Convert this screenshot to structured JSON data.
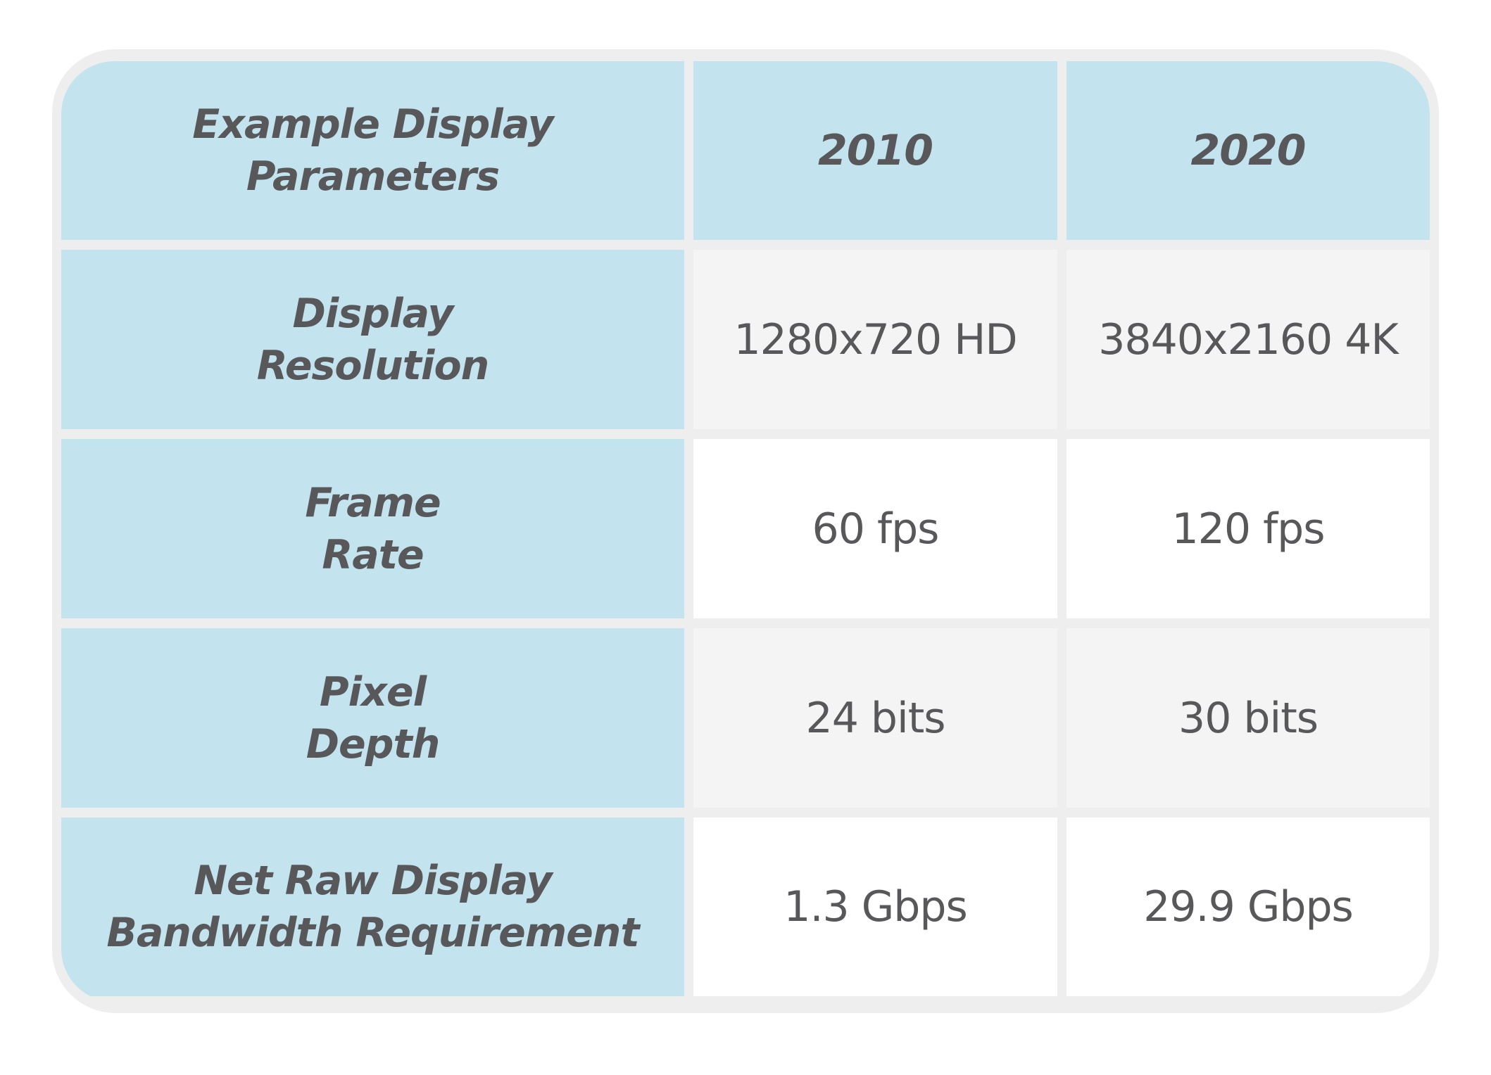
{
  "table": {
    "header": {
      "parameter": "Example Display\nParameters",
      "col_2010": "2010",
      "col_2020": "2020"
    },
    "rows": [
      {
        "label": "Display\nResolution",
        "v2010": "1280x720 HD",
        "v2020": "3840x2160 4K"
      },
      {
        "label": "Frame\nRate",
        "v2010": "60 fps",
        "v2020": "120 fps"
      },
      {
        "label": "Pixel\nDepth",
        "v2010": "24 bits",
        "v2020": "30 bits"
      },
      {
        "label": "Net Raw Display\nBandwidth Requirement",
        "v2010": "1.3 Gbps",
        "v2020": "29.9 Gbps"
      }
    ]
  },
  "colors": {
    "header_fill": "#c3e4ef",
    "alt_row_fill": "#f4f4f4",
    "row_fill": "#ffffff",
    "border": "#eeeeee",
    "text": "#58585a"
  }
}
